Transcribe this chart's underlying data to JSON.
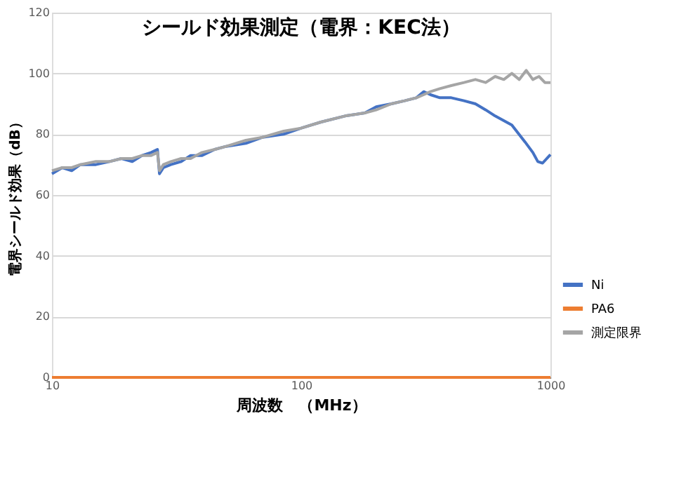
{
  "chart_data": {
    "type": "line",
    "title": "シールド効果測定（電界：KEC法）",
    "xlabel": "周波数　（MHz）",
    "ylabel": "電界シールド効果（dB）",
    "log": "x",
    "xlim": [
      10,
      1000
    ],
    "xticks": [
      10,
      100,
      1000
    ],
    "ylim": [
      0,
      120
    ],
    "yticks": [
      0,
      20,
      40,
      60,
      80,
      100,
      120
    ],
    "grid": "y",
    "legend": "right",
    "marker": "none",
    "line_style": "solid",
    "series": [
      {
        "name": "Ni",
        "color": "#4472c4",
        "x": [
          10,
          11,
          12,
          13,
          15,
          17,
          19,
          21,
          23,
          25,
          26.5,
          27,
          28,
          30,
          33,
          36,
          40,
          45,
          50,
          60,
          70,
          85,
          100,
          120,
          150,
          180,
          200,
          230,
          260,
          290,
          310,
          330,
          360,
          400,
          450,
          500,
          550,
          600,
          700,
          790,
          850,
          890,
          930,
          1000
        ],
        "values": [
          67,
          69,
          68,
          70,
          70,
          71,
          72,
          71,
          73,
          74,
          75,
          67,
          69,
          70,
          71,
          73,
          73,
          75,
          76,
          77,
          79,
          80,
          82,
          84,
          86,
          87,
          89,
          90,
          91,
          92,
          94,
          93,
          92,
          92,
          91,
          90,
          88,
          86,
          83,
          77.5,
          74,
          71,
          70.5,
          73.3
        ]
      },
      {
        "name": "PA6",
        "color": "#ed7d31",
        "x": [
          10,
          1000
        ],
        "values": [
          0,
          0
        ]
      },
      {
        "name": "測定限界",
        "color": "#a5a5a5",
        "x": [
          10,
          11,
          12,
          13,
          15,
          17,
          19,
          21,
          23,
          25,
          26.5,
          27,
          28,
          30,
          33,
          36,
          40,
          45,
          50,
          60,
          70,
          85,
          100,
          120,
          150,
          180,
          200,
          230,
          260,
          290,
          310,
          330,
          360,
          400,
          450,
          500,
          550,
          600,
          650,
          700,
          750,
          800,
          850,
          900,
          950,
          1000
        ],
        "values": [
          68,
          69,
          69,
          70,
          71,
          71,
          72,
          72,
          73,
          73,
          74,
          68,
          70,
          71,
          72,
          72,
          74,
          75,
          76,
          78,
          79,
          81,
          82,
          84,
          86,
          87,
          88,
          90,
          91,
          92,
          93,
          94,
          95,
          96,
          97,
          98,
          97,
          99,
          98,
          100,
          98,
          101,
          98,
          99,
          97,
          97
        ]
      }
    ]
  }
}
